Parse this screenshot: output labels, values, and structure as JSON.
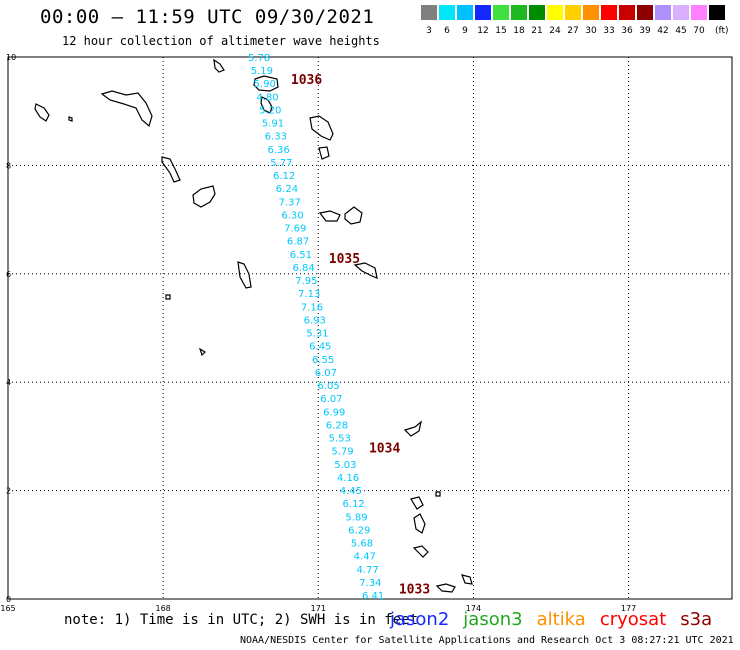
{
  "header": {
    "title": "00:00 – 11:59 UTC 09/30/2021",
    "subtitle": "12 hour collection of altimeter wave heights"
  },
  "legend": {
    "unit": "(ft)",
    "items": [
      {
        "label": "3",
        "color": "#808080"
      },
      {
        "label": "6",
        "color": "#00e8f8"
      },
      {
        "label": "9",
        "color": "#00c0ff"
      },
      {
        "label": "12",
        "color": "#1428ff"
      },
      {
        "label": "15",
        "color": "#40e040"
      },
      {
        "label": "18",
        "color": "#20b820"
      },
      {
        "label": "21",
        "color": "#008c00"
      },
      {
        "label": "24",
        "color": "#ffff00"
      },
      {
        "label": "27",
        "color": "#ffd000"
      },
      {
        "label": "30",
        "color": "#ff9000"
      },
      {
        "label": "33",
        "color": "#ff0000"
      },
      {
        "label": "36",
        "color": "#c80000"
      },
      {
        "label": "39",
        "color": "#8c0000"
      },
      {
        "label": "42",
        "color": "#b090ff"
      },
      {
        "label": "45",
        "color": "#d8b0ff"
      },
      {
        "label": "70",
        "color": "#ff80ff"
      },
      {
        "label": "",
        "color": "#000000"
      }
    ]
  },
  "map": {
    "lon_range": [
      165,
      179
    ],
    "lat_range": [
      0,
      10
    ],
    "x_ticks": [
      "165",
      "168",
      "171",
      "174",
      "177"
    ],
    "y_ticks": [
      "0",
      "2",
      "4",
      "6",
      "8",
      "10"
    ],
    "track_color": "#00c8ff",
    "swh_values": [
      "5.78",
      "5.19",
      "5.90",
      "4.80",
      "5.20",
      "5.91",
      "6.33",
      "6.36",
      "5.77",
      "6.12",
      "6.24",
      "7.37",
      "6.30",
      "7.69",
      "6.87",
      "6.51",
      "6.84",
      "7.95",
      "7.13",
      "7.16",
      "6.93",
      "5.31",
      "6.45",
      "6.55",
      "6.07",
      "6.05",
      "6.07",
      "6.99",
      "6.28",
      "5.53",
      "5.79",
      "5.03",
      "4.16",
      "4.45",
      "6.12",
      "5.89",
      "6.29",
      "5.68",
      "4.47",
      "4.77",
      "7.34",
      "6.41"
    ],
    "time_labels": [
      {
        "text": "1036",
        "lat": 9.5
      },
      {
        "text": "1035",
        "lat": 6.2
      },
      {
        "text": "1034",
        "lat": 2.7
      },
      {
        "text": "1033",
        "lat": 0.1
      }
    ]
  },
  "footer": {
    "note": "note: 1) Time is in UTC; 2) SWH is in feet",
    "satellites": [
      {
        "name": "jason2",
        "color": "#1428ff"
      },
      {
        "name": "jason3",
        "color": "#20a820"
      },
      {
        "name": "altika",
        "color": "#ff9000"
      },
      {
        "name": "cryosat",
        "color": "#ff0000"
      },
      {
        "name": "s3a",
        "color": "#8c0000"
      }
    ],
    "credit": "NOAA/NESDIS Center for Satellite Applications and Research   Oct  3 08:27:21 UTC 2021"
  }
}
